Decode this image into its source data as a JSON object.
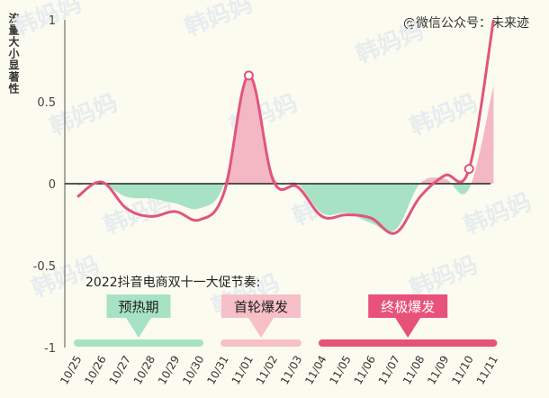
{
  "watermark": "@微信公众号：未来迹",
  "chart_data": {
    "type": "area",
    "ylabel": "流量大小显著性",
    "ylim": [
      -1,
      1
    ],
    "yticks": [
      1,
      0.5,
      0,
      -0.5,
      -1
    ],
    "ytick_labels": [
      "1",
      "0.5",
      "0",
      "-0.5",
      "-1"
    ],
    "categories": [
      "10/25",
      "10/26",
      "10/27",
      "10/28",
      "10/29",
      "10/30",
      "10/31",
      "11/01",
      "11/02",
      "11/03",
      "11/04",
      "11/05",
      "11/06",
      "11/07",
      "11/08",
      "11/09",
      "11/10",
      "11/11"
    ],
    "series": [
      {
        "values": [
          -0.08,
          0.01,
          -0.15,
          -0.2,
          -0.17,
          -0.22,
          -0.05,
          0.66,
          0.02,
          -0.02,
          -0.2,
          -0.19,
          -0.21,
          -0.3,
          -0.08,
          0.05,
          0.09,
          1.0
        ]
      },
      {
        "values": [
          -0.01,
          0.0,
          -0.08,
          -0.09,
          -0.12,
          -0.15,
          0.0,
          0.66,
          0.05,
          0.0,
          -0.18,
          -0.18,
          -0.24,
          -0.28,
          0.0,
          0.03,
          -0.03,
          0.6
        ]
      }
    ],
    "markers": [
      {
        "category": "11/01",
        "value": 0.66
      },
      {
        "category": "11/10",
        "value": 0.09
      }
    ],
    "phases": {
      "title": "2022抖音电商双十一大促节奏:",
      "items": [
        {
          "label": "预热期",
          "start": "10/25",
          "end": "10/30",
          "color": "#a8e2c4",
          "text_color": "#1f1f1f"
        },
        {
          "label": "首轮爆发",
          "start": "10/31",
          "end": "11/03",
          "color": "#f7bfc8",
          "text_color": "#1f1f1f"
        },
        {
          "label": "终极爆发",
          "start": "11/04",
          "end": "11/11",
          "color": "#e8527a",
          "text_color": "#ffffff"
        }
      ]
    },
    "colors": {
      "line": "#e0557c",
      "area_positive": "#f4b7c4",
      "area_negative": "#a8e2c4",
      "zero_line": "#222222"
    },
    "grid": false
  },
  "background_watermark": "韩妈妈"
}
